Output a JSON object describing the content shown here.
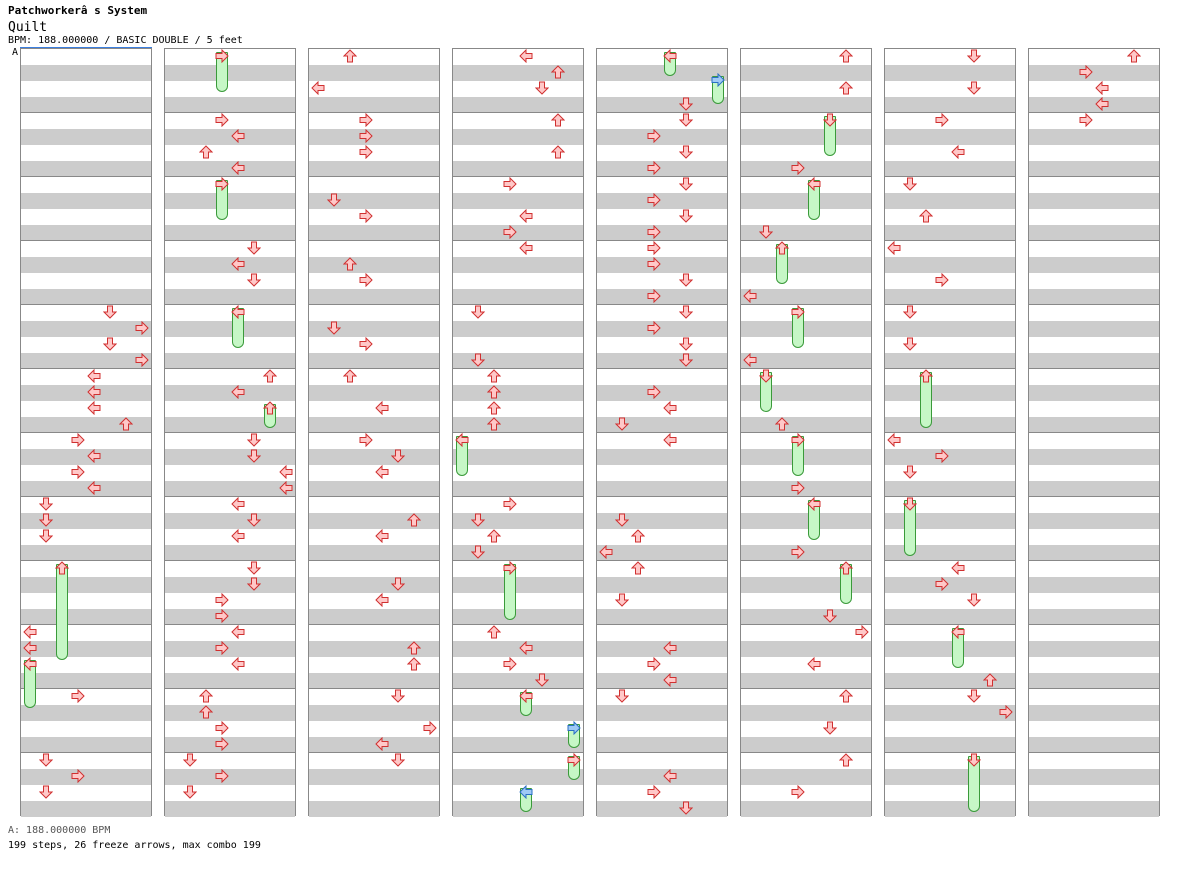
{
  "header": {
    "title": "Patchworkerâ  s System",
    "song": "Quilt",
    "bpm_line": "BPM: 188.000000 / BASIC DOUBLE / 5 feet"
  },
  "section_label": "A",
  "footer": {
    "bpm": "A: 188.000000 BPM",
    "stats": "199 steps, 26 freeze arrows, max combo 199"
  },
  "colors": {
    "arrow_fill": "#ffc8c8",
    "arrow_stroke": "#d03030",
    "freeze_fill": "#c6f7c6",
    "freeze_stroke": "#3a9a3a",
    "stripe": "#cccccc",
    "shock_blue": "#6aaaf0"
  },
  "chart_summary": {
    "steps": 199,
    "freeze_arrows": 26,
    "max_combo": 199,
    "bpm": 188.0,
    "difficulty": "BASIC DOUBLE",
    "rating_feet": 5
  }
}
